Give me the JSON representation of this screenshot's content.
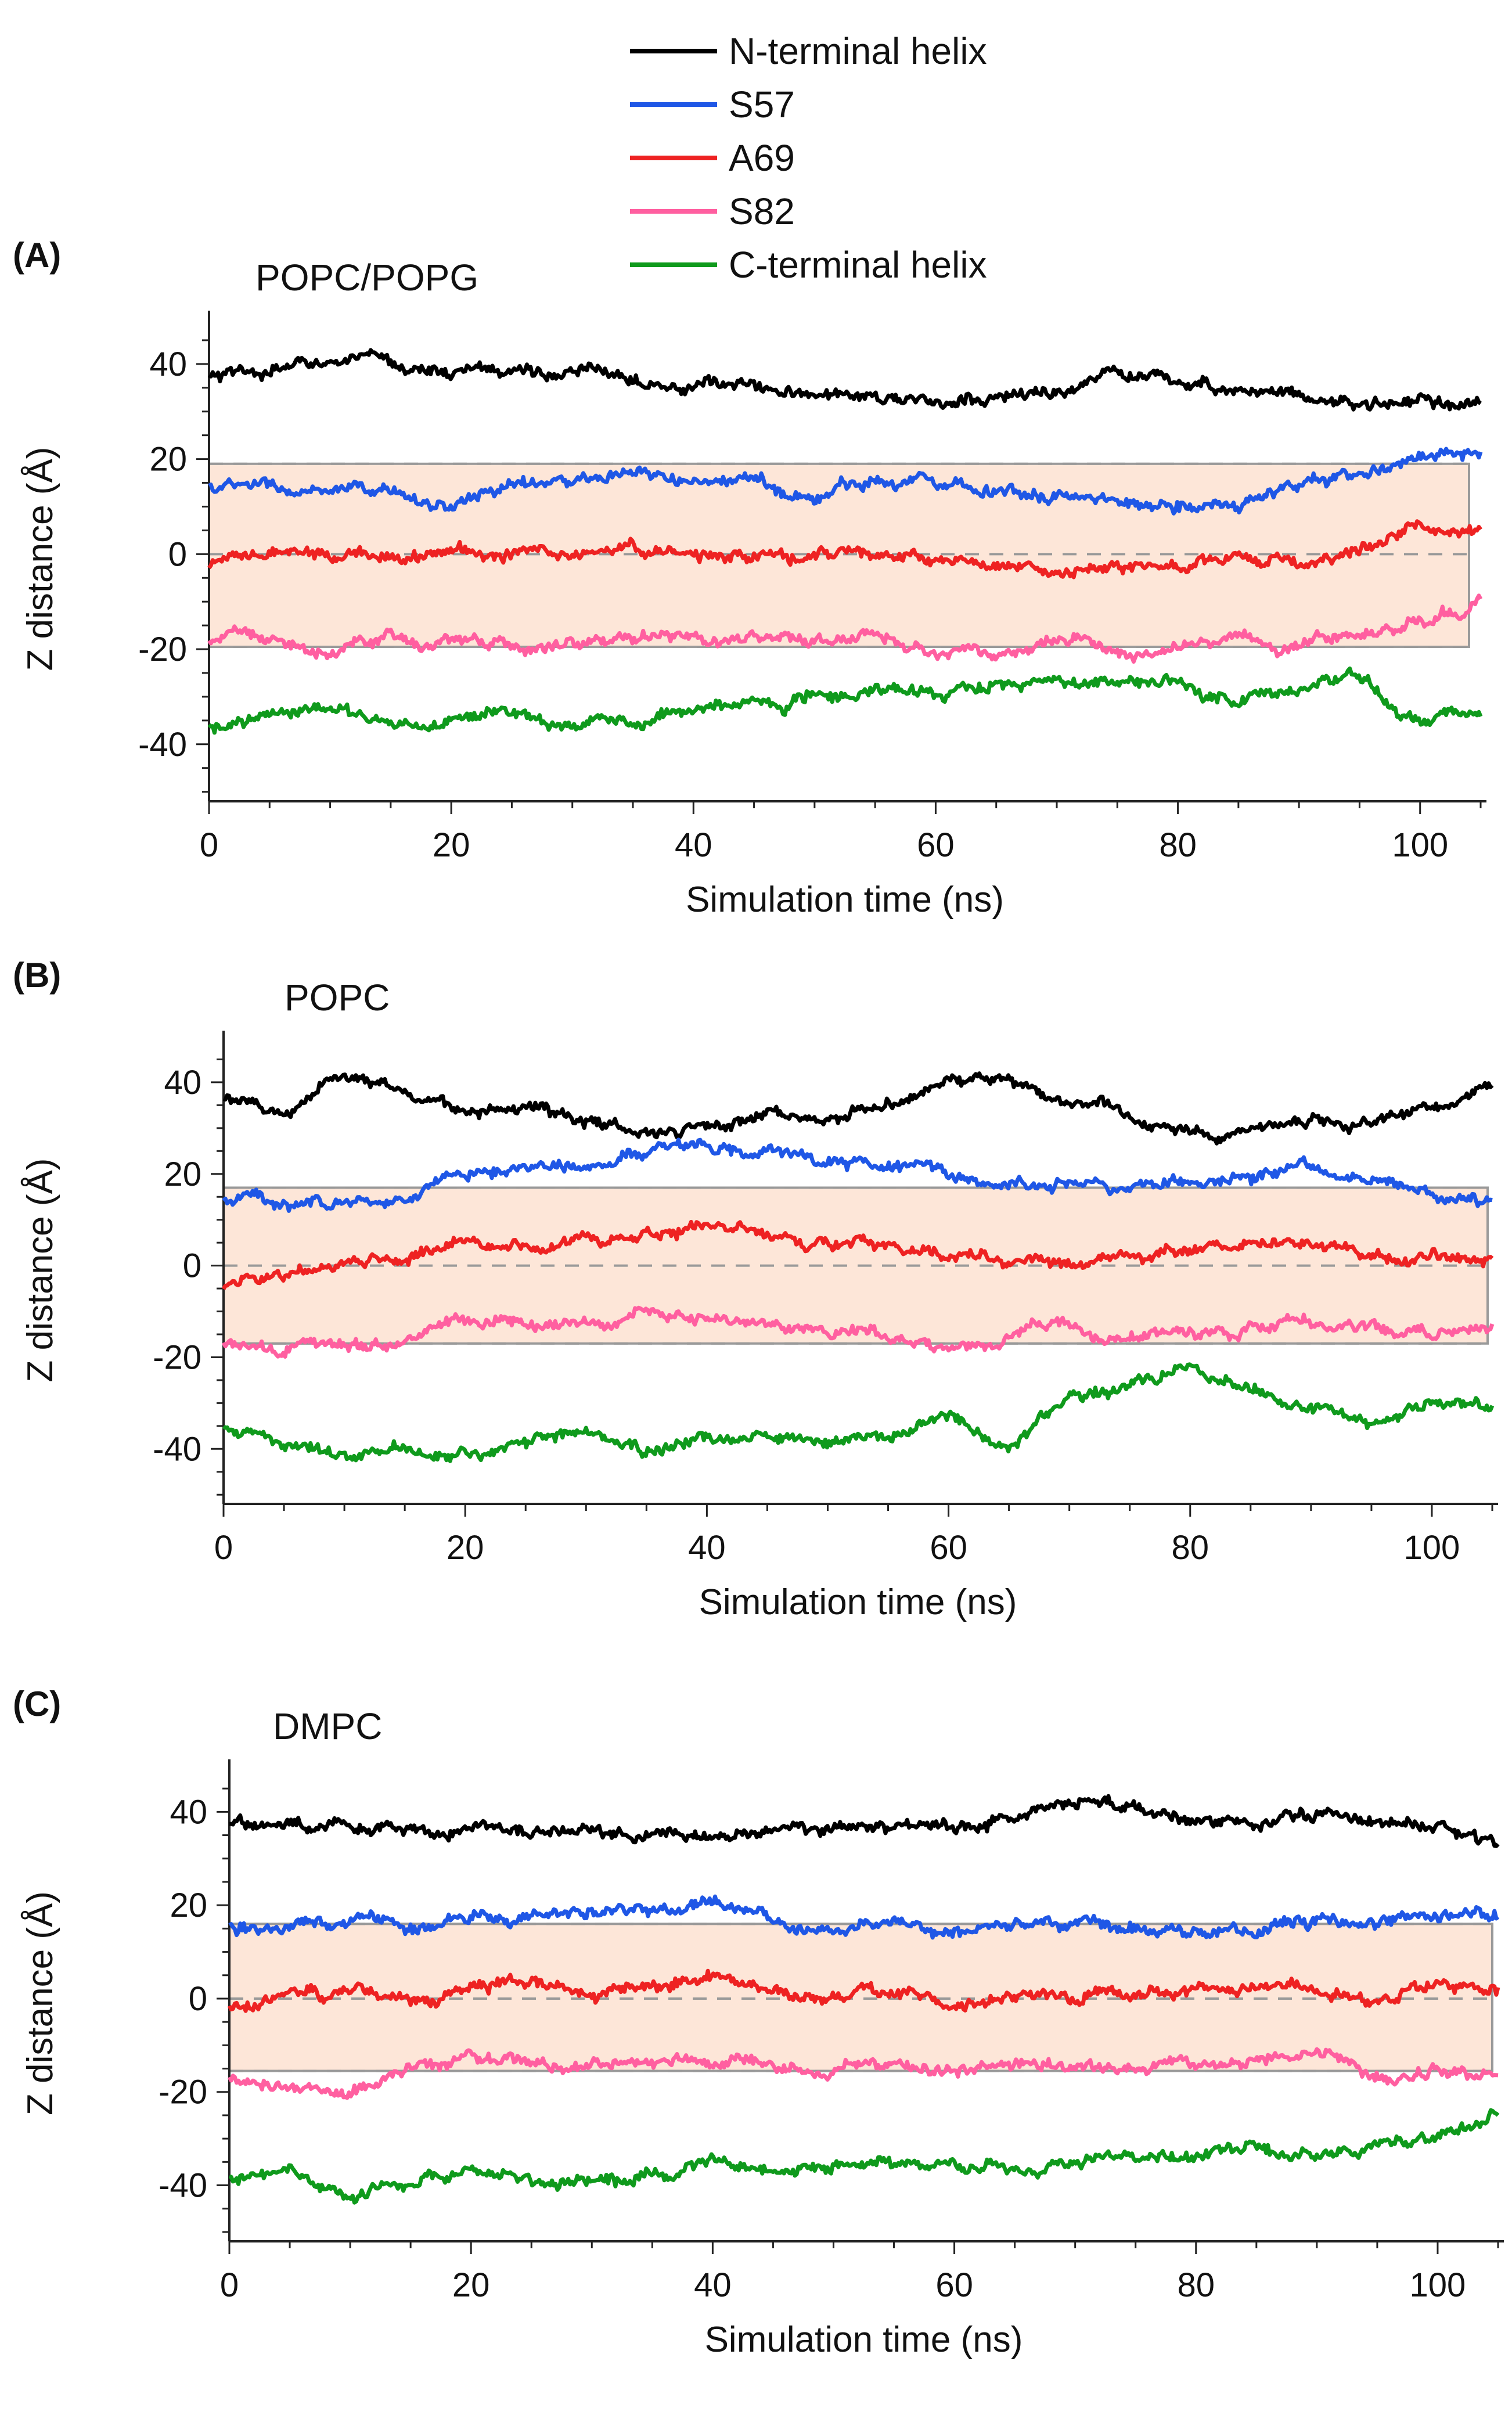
{
  "legend": {
    "entries": [
      {
        "name": "N-terminal helix",
        "color": "#000000"
      },
      {
        "name": "S57",
        "color": "#1f57e6"
      },
      {
        "name": "A69",
        "color": "#ee2222"
      },
      {
        "name": "S82",
        "color": "#ff5fa0"
      },
      {
        "name": "C-terminal helix",
        "color": "#0f9a1c"
      }
    ]
  },
  "chart_data": [
    {
      "type": "line",
      "panel_label": "(A)",
      "title": "POPC/POPG",
      "xlabel": "Simulation time (ns)",
      "ylabel": "Z distance (Å)",
      "xlim": [
        0,
        105
      ],
      "ylim": [
        -52,
        50
      ],
      "xticks": [
        "0",
        "20",
        "40",
        "60",
        "80",
        "100"
      ],
      "yticks": [
        "40",
        "20",
        "0",
        "-20",
        "-40"
      ],
      "shaded_band": [
        -19.5,
        19
      ],
      "dashed_lines": [
        19,
        0,
        -19.5
      ],
      "x": [
        0,
        5,
        10,
        15,
        20,
        25,
        30,
        35,
        40,
        45,
        50,
        55,
        60,
        65,
        70,
        75,
        80,
        85,
        90,
        95,
        100,
        105
      ],
      "series": [
        {
          "name": "N-terminal helix",
          "values": [
            37,
            38,
            41,
            40,
            38,
            39,
            38,
            38,
            36,
            35,
            33,
            34,
            31,
            33,
            34,
            38,
            36,
            35,
            34,
            31,
            32,
            31
          ]
        },
        {
          "name": "S57",
          "values": [
            14,
            14,
            12,
            13,
            10,
            15,
            15,
            16,
            15,
            15,
            12,
            16,
            16,
            14,
            12,
            11,
            11,
            10,
            15,
            16,
            21,
            20
          ]
        },
        {
          "name": "A69",
          "values": [
            -3,
            0,
            -1,
            0,
            1,
            0,
            1,
            1,
            0,
            -1,
            0,
            0,
            -2,
            -3,
            -4,
            -2,
            -3,
            -1,
            -2,
            1,
            6,
            5
          ]
        },
        {
          "name": "S82",
          "values": [
            -18,
            -17,
            -21,
            -18,
            -19,
            -20,
            -18,
            -18,
            -17,
            -18,
            -18,
            -18,
            -20,
            -21,
            -18,
            -19,
            -20,
            -18,
            -19,
            -17,
            -13,
            -10
          ]
        },
        {
          "name": "C-terminal helix",
          "values": [
            -37,
            -35,
            -32,
            -37,
            -35,
            -34,
            -36,
            -35,
            -33,
            -32,
            -29,
            -28,
            -29,
            -28,
            -26,
            -28,
            -27,
            -30,
            -28,
            -26,
            -36,
            -34
          ]
        }
      ]
    },
    {
      "type": "line",
      "panel_label": "(B)",
      "title": "POPC",
      "xlabel": "Simulation time (ns)",
      "ylabel": "Z distance (Å)",
      "xlim": [
        0,
        105
      ],
      "ylim": [
        -52,
        50
      ],
      "xticks": [
        "0",
        "20",
        "40",
        "60",
        "80",
        "100"
      ],
      "yticks": [
        "40",
        "20",
        "0",
        "-20",
        "-40"
      ],
      "shaded_band": [
        -17,
        17
      ],
      "dashed_lines": [
        17,
        0,
        -17
      ],
      "x": [
        0,
        5,
        10,
        15,
        20,
        25,
        30,
        35,
        40,
        45,
        50,
        55,
        60,
        65,
        70,
        75,
        80,
        85,
        90,
        95,
        100,
        105
      ],
      "series": [
        {
          "name": "N-terminal helix",
          "values": [
            37,
            33,
            43,
            37,
            34,
            34,
            32,
            30,
            31,
            33,
            33,
            35,
            40,
            41,
            36,
            34,
            29,
            30,
            31,
            32,
            34,
            39
          ]
        },
        {
          "name": "S57",
          "values": [
            15,
            14,
            14,
            15,
            20,
            22,
            23,
            25,
            26,
            24,
            22,
            22,
            20,
            18,
            18,
            17,
            19,
            20,
            22,
            19,
            16,
            14
          ]
        },
        {
          "name": "A69",
          "values": [
            -4,
            -2,
            0,
            1,
            6,
            4,
            6,
            7,
            9,
            7,
            5,
            5,
            2,
            2,
            1,
            2,
            3,
            4,
            4,
            3,
            2,
            1
          ]
        },
        {
          "name": "S82",
          "values": [
            -17,
            -18,
            -18,
            -17,
            -12,
            -13,
            -13,
            -11,
            -11,
            -12,
            -14,
            -15,
            -18,
            -15,
            -13,
            -15,
            -15,
            -14,
            -13,
            -14,
            -14,
            -14
          ]
        },
        {
          "name": "C-terminal helix",
          "values": [
            -35,
            -38,
            -40,
            -40,
            -41,
            -39,
            -36,
            -40,
            -38,
            -37,
            -39,
            -38,
            -32,
            -40,
            -28,
            -27,
            -22,
            -27,
            -30,
            -34,
            -30,
            -31
          ]
        }
      ]
    },
    {
      "type": "line",
      "panel_label": "(C)",
      "title": "DMPC",
      "xlabel": "Simulation time (ns)",
      "ylabel": "Z distance (Å)",
      "xlim": [
        0,
        105
      ],
      "ylim": [
        -52,
        50
      ],
      "xticks": [
        "0",
        "20",
        "40",
        "60",
        "80",
        "100"
      ],
      "yticks": [
        "40",
        "20",
        "0",
        "-20",
        "-40"
      ],
      "shaded_band": [
        -15.5,
        16
      ],
      "dashed_lines": [
        16,
        0,
        -15.5
      ],
      "x": [
        0,
        5,
        10,
        15,
        20,
        25,
        30,
        35,
        40,
        45,
        50,
        55,
        60,
        65,
        70,
        75,
        80,
        85,
        90,
        95,
        100,
        105
      ],
      "series": [
        {
          "name": "N-terminal helix",
          "values": [
            38,
            37,
            37,
            35,
            37,
            36,
            36,
            34,
            35,
            36,
            36,
            37,
            37,
            39,
            42,
            41,
            39,
            38,
            40,
            39,
            36,
            33
          ]
        },
        {
          "name": "S57",
          "values": [
            15,
            16,
            16,
            16,
            17,
            18,
            19,
            20,
            21,
            17,
            15,
            16,
            15,
            15,
            16,
            15,
            15,
            14,
            16,
            16,
            18,
            18
          ]
        },
        {
          "name": "A69",
          "values": [
            -2,
            0,
            1,
            0,
            3,
            4,
            2,
            3,
            4,
            2,
            0,
            1,
            0,
            0,
            1,
            2,
            2,
            2,
            2,
            1,
            3,
            1
          ]
        },
        {
          "name": "S82",
          "values": [
            -17,
            -19,
            -20,
            -16,
            -13,
            -14,
            -15,
            -14,
            -13,
            -14,
            -15,
            -14,
            -15,
            -14,
            -15,
            -14,
            -14,
            -13,
            -12,
            -17,
            -16,
            -16
          ]
        },
        {
          "name": "C-terminal helix",
          "values": [
            -38,
            -38,
            -42,
            -38,
            -37,
            -38,
            -40,
            -38,
            -34,
            -37,
            -35,
            -36,
            -36,
            -36,
            -35,
            -34,
            -33,
            -32,
            -34,
            -32,
            -29,
            -26
          ]
        }
      ]
    }
  ]
}
